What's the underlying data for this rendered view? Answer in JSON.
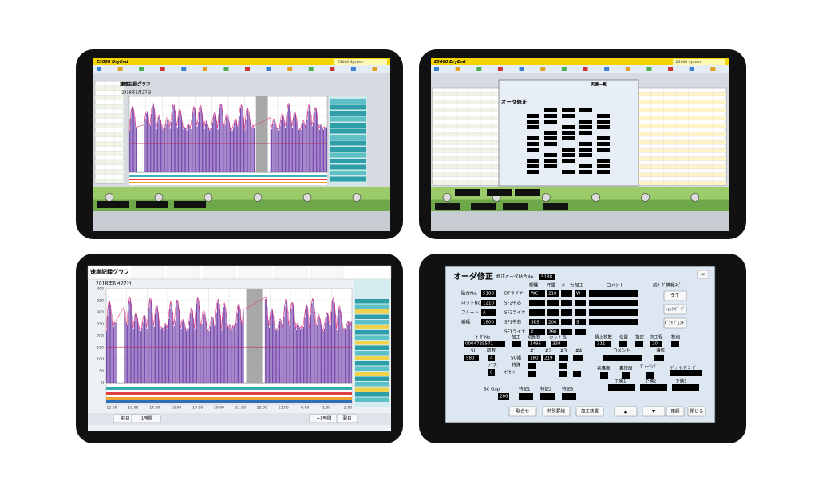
{
  "top_left": {
    "system": "E3000 DryEnd",
    "brand": "E3000 System",
    "graph_title": "速度記録グラフ",
    "date": "2018年6月27日"
  },
  "top_right": {
    "system": "E3000 DryEnd",
    "brand": "E3000 System",
    "dialog_title": "オーダ修正",
    "list_title": "実績一覧"
  },
  "speed_graph": {
    "title": "速度記録グラフ",
    "date": "2018年6月27日",
    "y_labels": [
      "400",
      "350",
      "300",
      "250",
      "200",
      "150",
      "100",
      "50",
      "0"
    ],
    "x_labels": [
      "15:00",
      "16:00",
      "17:00",
      "18:00",
      "19:00",
      "20:00",
      "21:00",
      "22:00",
      "23:00",
      "0:00",
      "1:00",
      "2:00"
    ],
    "nav": [
      "前日",
      "-1時間",
      "+1時間",
      "翌日"
    ]
  },
  "order_edit": {
    "title": "オーダ修正",
    "target_label": "修正オーダ貼合No.",
    "target_no": "5188",
    "close": "×",
    "columns": [
      "糊種",
      "坪量",
      "メーカ",
      "加工",
      "コメント"
    ],
    "basic": [
      {
        "label": "貼合No.",
        "value": "5188"
      },
      {
        "label": "ロットNo.",
        "value": "1210"
      },
      {
        "label": "フルート",
        "value": "A"
      },
      {
        "label": "紙幅",
        "value": "1800"
      }
    ],
    "layers": [
      {
        "label": "DFライナ",
        "glue": "WC",
        "weight": "210",
        "process": "W"
      },
      {
        "label": "SF2中芯"
      },
      {
        "label": "SF2ライナ"
      },
      {
        "label": "SF1中芯",
        "glue": "SKS",
        "weight": "200",
        "process": "S"
      },
      {
        "label": "SF1ライナ",
        "glue": "K",
        "weight": "280"
      }
    ],
    "copy_title": "前ｵｰﾀﾞ情報ｺﾋﾟｰ",
    "copy_buttons": [
      "全て",
      "ｼｪｯﾄﾊﾞｰｸﾞ",
      "ﾄﾞﾗｲﾌﾞｴﾝﾄﾞ"
    ],
    "fields": {
      "order_no_label": "ｵｰﾀﾞNo",
      "order_no": "0004725571",
      "process_label": "加工",
      "cut_count_label": "切断数",
      "cut_count": "1495",
      "cut_length_label": "カット長",
      "cut_length": "338",
      "stack_label": "積上枚数",
      "stack": "311",
      "position_label": "位置",
      "designation_label": "指定",
      "next_label": "次工程",
      "next": "20",
      "sets_label": "数組",
      "sl_label": "SL",
      "sl": "580",
      "take_label": "取数",
      "take": "4",
      "slot_labels": [
        "#1",
        "#2",
        "#3",
        "#4"
      ],
      "comment_label": "コメント",
      "comm_label": "通信",
      "sc_label": "SC幅",
      "sc": [
        "180",
        "219"
      ],
      "pass_label": "パス",
      "special_label": "特殊",
      "offset_label": "ｵﾌｾｯﾄ",
      "offset": "0",
      "surface_label": "表裏面",
      "back_label": "裏接面",
      "dealing_label": "ﾃﾞｨｰﾗﾝｸﾞ",
      "dealing_code_label": "ﾃﾞｨｰﾗﾝｸﾞｺｰﾄﾞ",
      "spare_labels": [
        "予備1",
        "予備2",
        "予備3"
      ],
      "gap_label": "SC Gap",
      "gap": "280",
      "notes_labels": [
        "特記1",
        "特記2",
        "特記3"
      ]
    },
    "buttons": [
      "取合せ",
      "特殊罫線",
      "加工装置",
      "▲",
      "▼",
      "確認",
      "閉じる"
    ]
  }
}
